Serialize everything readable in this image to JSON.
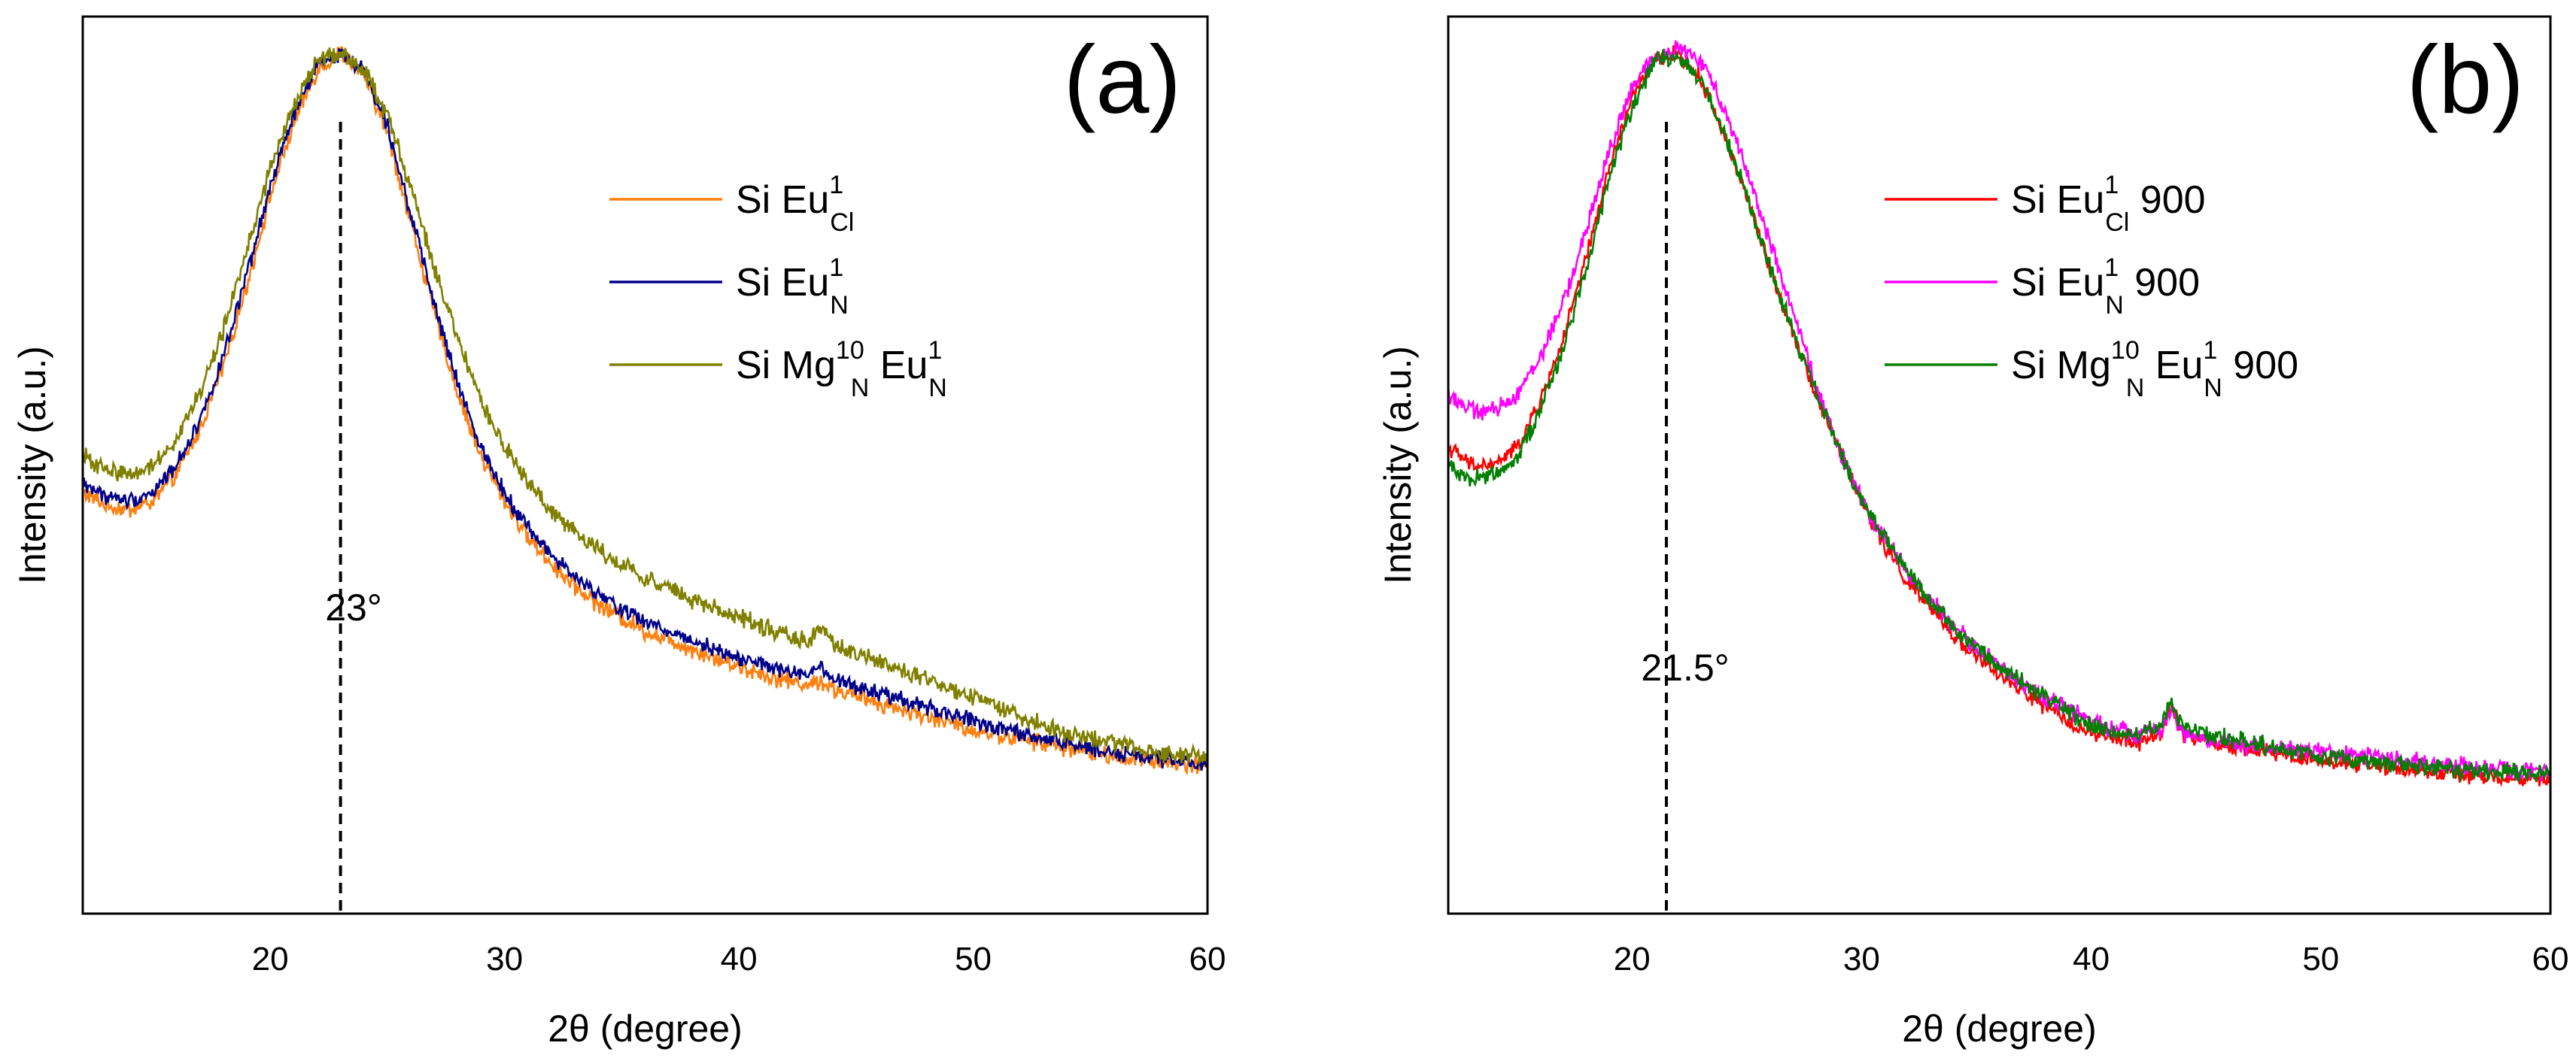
{
  "chart_data": [
    {
      "type": "line",
      "panel_label": "(a)",
      "xlabel": "2θ (degree)",
      "ylabel": "Intensity (a.u.)",
      "xlim": [
        12,
        60
      ],
      "ylim": [
        0,
        1
      ],
      "yticks_shown": false,
      "xticks": [
        20,
        30,
        40,
        50,
        60
      ],
      "xtick_labels": [
        "20",
        "30",
        "40",
        "50",
        "60"
      ],
      "legend_position": "top-right",
      "peak_marker": {
        "x": 23,
        "label": "23°"
      },
      "series": [
        {
          "name": "Si Eu1Cl",
          "legend": {
            "base": "Si Eu",
            "sup": "1",
            "sub": "Cl",
            "tail": ""
          },
          "color": "#FF7F0E",
          "noise": 0.008,
          "x": [
            12,
            13,
            14,
            15,
            16,
            17,
            18,
            19,
            20,
            21,
            22,
            23,
            24,
            25,
            26,
            27,
            28,
            29,
            30,
            31,
            32,
            33,
            34,
            35,
            36,
            38,
            40,
            42,
            43,
            43.5,
            44,
            46,
            48,
            50,
            52,
            54,
            56,
            58,
            60
          ],
          "y": [
            0.47,
            0.455,
            0.45,
            0.46,
            0.49,
            0.54,
            0.61,
            0.7,
            0.8,
            0.88,
            0.94,
            0.96,
            0.935,
            0.87,
            0.77,
            0.67,
            0.58,
            0.51,
            0.46,
            0.42,
            0.39,
            0.365,
            0.345,
            0.33,
            0.315,
            0.295,
            0.275,
            0.26,
            0.255,
            0.26,
            0.25,
            0.235,
            0.22,
            0.205,
            0.195,
            0.185,
            0.175,
            0.17,
            0.165
          ]
        },
        {
          "name": "Si Eu1N",
          "legend": {
            "base": "Si Eu",
            "sup": "1",
            "sub": "N",
            "tail": ""
          },
          "color": "#00008B",
          "noise": 0.007,
          "x": [
            12,
            13,
            14,
            15,
            16,
            17,
            18,
            19,
            20,
            21,
            22,
            23,
            24,
            25,
            26,
            27,
            28,
            29,
            30,
            31,
            32,
            33,
            34,
            35,
            36,
            38,
            40,
            42,
            43,
            43.5,
            44,
            46,
            48,
            50,
            52,
            54,
            56,
            58,
            60
          ],
          "y": [
            0.48,
            0.465,
            0.46,
            0.47,
            0.5,
            0.55,
            0.62,
            0.71,
            0.81,
            0.89,
            0.945,
            0.96,
            0.94,
            0.88,
            0.78,
            0.68,
            0.59,
            0.52,
            0.47,
            0.43,
            0.4,
            0.375,
            0.355,
            0.34,
            0.325,
            0.305,
            0.285,
            0.27,
            0.265,
            0.275,
            0.26,
            0.245,
            0.23,
            0.215,
            0.2,
            0.19,
            0.18,
            0.172,
            0.168
          ]
        },
        {
          "name": "Si Mg10N Eu1N",
          "legend": {
            "base": "Si Mg",
            "sup": "10",
            "sub": "N",
            "tail": " Eu",
            "sup2": "1",
            "sub2": "N"
          },
          "color": "#808000",
          "noise": 0.008,
          "x": [
            12,
            13,
            14,
            15,
            16,
            17,
            18,
            19,
            20,
            21,
            22,
            23,
            24,
            25,
            26,
            27,
            28,
            29,
            30,
            31,
            32,
            33,
            34,
            35,
            36,
            38,
            40,
            42,
            43,
            43.5,
            44,
            46,
            48,
            50,
            52,
            54,
            56,
            58,
            60
          ],
          "y": [
            0.51,
            0.495,
            0.49,
            0.5,
            0.53,
            0.58,
            0.65,
            0.74,
            0.83,
            0.9,
            0.95,
            0.96,
            0.94,
            0.89,
            0.81,
            0.72,
            0.64,
            0.57,
            0.52,
            0.48,
            0.45,
            0.425,
            0.405,
            0.39,
            0.375,
            0.35,
            0.33,
            0.31,
            0.305,
            0.32,
            0.3,
            0.28,
            0.26,
            0.24,
            0.22,
            0.2,
            0.19,
            0.18,
            0.175
          ]
        }
      ]
    },
    {
      "type": "line",
      "panel_label": "(b)",
      "xlabel": "2θ (degree)",
      "ylabel": "Intensity (a.u.)",
      "xlim": [
        12,
        60
      ],
      "ylim": [
        0,
        1
      ],
      "yticks_shown": false,
      "xticks": [
        20,
        30,
        40,
        50,
        60
      ],
      "xtick_labels": [
        "20",
        "30",
        "40",
        "50",
        "60"
      ],
      "legend_position": "top-right",
      "peak_marker": {
        "x": 21.5,
        "label": "21.5°"
      },
      "series": [
        {
          "name": "Si Eu1Cl 900",
          "legend": {
            "base": "Si Eu",
            "sup": "1",
            "sub": "Cl",
            "tail": " 900"
          },
          "color": "#FF0000",
          "noise": 0.007,
          "x": [
            12,
            13,
            14,
            15,
            16,
            17,
            18,
            19,
            20,
            21,
            22,
            23,
            24,
            25,
            26,
            27,
            28,
            29,
            30,
            31,
            32,
            33,
            34,
            36,
            38,
            40,
            42,
            43,
            43.5,
            44,
            46,
            48,
            50,
            52,
            54,
            56,
            58,
            60
          ],
          "y": [
            0.52,
            0.5,
            0.5,
            0.52,
            0.57,
            0.64,
            0.73,
            0.83,
            0.91,
            0.95,
            0.96,
            0.93,
            0.87,
            0.8,
            0.72,
            0.65,
            0.58,
            0.52,
            0.46,
            0.41,
            0.37,
            0.34,
            0.31,
            0.265,
            0.23,
            0.2,
            0.19,
            0.2,
            0.23,
            0.2,
            0.185,
            0.18,
            0.17,
            0.165,
            0.16,
            0.155,
            0.15,
            0.15
          ]
        },
        {
          "name": "Si Eu1N 900",
          "legend": {
            "base": "Si Eu",
            "sup": "1",
            "sub": "N",
            "tail": " 900"
          },
          "color": "#FF00FF",
          "noise": 0.008,
          "x": [
            12,
            13,
            14,
            15,
            16,
            17,
            18,
            19,
            20,
            21,
            22,
            23,
            24,
            25,
            26,
            27,
            28,
            29,
            30,
            31,
            32,
            33,
            34,
            36,
            38,
            40,
            42,
            43,
            43.5,
            44,
            46,
            48,
            50,
            52,
            54,
            56,
            58,
            60
          ],
          "y": [
            0.58,
            0.56,
            0.56,
            0.58,
            0.62,
            0.68,
            0.76,
            0.85,
            0.92,
            0.955,
            0.965,
            0.95,
            0.9,
            0.83,
            0.75,
            0.67,
            0.59,
            0.52,
            0.46,
            0.42,
            0.38,
            0.35,
            0.32,
            0.275,
            0.24,
            0.215,
            0.2,
            0.205,
            0.225,
            0.2,
            0.19,
            0.185,
            0.18,
            0.175,
            0.17,
            0.165,
            0.16,
            0.155
          ]
        },
        {
          "name": "Si Mg10N Eu1N 900",
          "legend": {
            "base": "Si Mg",
            "sup": "10",
            "sub": "N",
            "tail": " Eu",
            "sup2": "1",
            "sub2": "N",
            "tail2": " 900"
          },
          "color": "#007F00",
          "noise": 0.008,
          "x": [
            12,
            13,
            14,
            15,
            16,
            17,
            18,
            19,
            20,
            21,
            22,
            23,
            24,
            25,
            26,
            27,
            28,
            29,
            30,
            31,
            32,
            33,
            34,
            36,
            38,
            40,
            42,
            43,
            43.5,
            44,
            46,
            48,
            50,
            52,
            54,
            56,
            58,
            60
          ],
          "y": [
            0.5,
            0.485,
            0.49,
            0.51,
            0.56,
            0.63,
            0.72,
            0.82,
            0.9,
            0.95,
            0.955,
            0.93,
            0.87,
            0.8,
            0.72,
            0.65,
            0.58,
            0.52,
            0.46,
            0.42,
            0.38,
            0.35,
            0.32,
            0.275,
            0.24,
            0.21,
            0.2,
            0.21,
            0.235,
            0.205,
            0.195,
            0.185,
            0.175,
            0.17,
            0.165,
            0.16,
            0.158,
            0.155
          ]
        }
      ]
    }
  ]
}
